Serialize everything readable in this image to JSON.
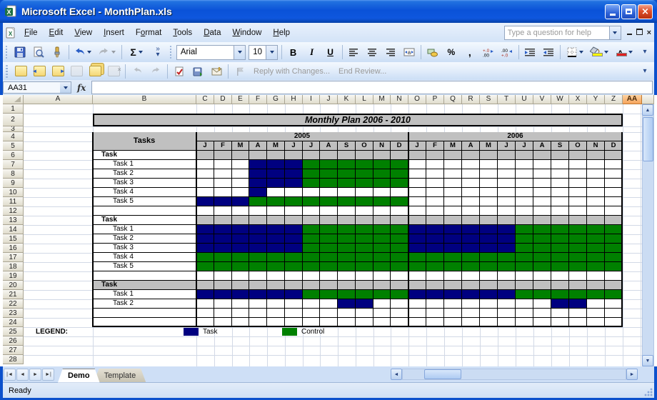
{
  "window": {
    "title": "Microsoft Excel - MonthPlan.xls"
  },
  "menu_bar": {
    "items": [
      {
        "label": "File",
        "accel": "F"
      },
      {
        "label": "Edit",
        "accel": "E"
      },
      {
        "label": "View",
        "accel": "V"
      },
      {
        "label": "Insert",
        "accel": "I"
      },
      {
        "label": "Format",
        "accel": "o"
      },
      {
        "label": "Tools",
        "accel": "T"
      },
      {
        "label": "Data",
        "accel": "D"
      },
      {
        "label": "Window",
        "accel": "W"
      },
      {
        "label": "Help",
        "accel": "H"
      }
    ],
    "help_placeholder": "Type a question for help"
  },
  "standard_toolbar": {
    "autosum_label": "Σ",
    "overflow_chevron": "»"
  },
  "formatting_toolbar": {
    "font_name": "Arial",
    "font_size": "10",
    "bold_label": "B",
    "italic_label": "I",
    "underline_label": "U",
    "percent_label": "%",
    "comma_label": ",",
    "font_color_label": "A"
  },
  "reviewing_toolbar": {
    "reply_with_changes": "Reply with Changes...",
    "end_review": "End Review..."
  },
  "formula_bar": {
    "name_box": "AA31",
    "fx_label": "fx",
    "formula_value": ""
  },
  "sheet": {
    "title": "Monthly Plan 2006 - 2010",
    "tasks_header": "Tasks",
    "columns": [
      "A",
      "B",
      "C",
      "D",
      "E",
      "F",
      "G",
      "H",
      "I",
      "J",
      "K",
      "L",
      "M",
      "N",
      "O",
      "P",
      "Q",
      "R",
      "S",
      "T",
      "U",
      "V",
      "W",
      "X",
      "Y",
      "Z",
      "AA"
    ],
    "selected_column": "AA",
    "visible_rows": 28,
    "years": [
      {
        "label": "2005",
        "months": [
          "J",
          "F",
          "M",
          "A",
          "M",
          "J",
          "J",
          "A",
          "S",
          "O",
          "N",
          "D"
        ]
      },
      {
        "label": "2006",
        "months": [
          "J",
          "F",
          "M",
          "A",
          "M",
          "J",
          "J",
          "A",
          "S",
          "O",
          "N",
          "D"
        ]
      }
    ],
    "rows": [
      {
        "row": 6,
        "type": "section",
        "label": "Task",
        "b_gray": false
      },
      {
        "row": 7,
        "type": "task",
        "label": "Task 1",
        "cells": "WWWBBBGGGGGGWWWWWWWWWWWW"
      },
      {
        "row": 8,
        "type": "task",
        "label": "Task 2",
        "cells": "WWWBBBGGGGGGWWWWWWWWWWWW"
      },
      {
        "row": 9,
        "type": "task",
        "label": "Task 3",
        "cells": "WWWBBBGGGGGGWWWWWWWWWWWW"
      },
      {
        "row": 10,
        "type": "task",
        "label": "Task 4",
        "cells": "WWWBWWWWWWWWWWWWWWWWWWWW"
      },
      {
        "row": 11,
        "type": "task",
        "label": "Task 5",
        "cells": "BBBGGGGGGGGGWWWWWWWWWWWW"
      },
      {
        "row": 12,
        "type": "blank"
      },
      {
        "row": 13,
        "type": "section",
        "label": "Task",
        "b_gray": false
      },
      {
        "row": 14,
        "type": "task",
        "label": "Task 1",
        "cells": "BBBBBBGGGGGGBBBBBBGGGGGG"
      },
      {
        "row": 15,
        "type": "task",
        "label": "Task 2",
        "cells": "BBBBBBGGGGGGBBBBBBGGGGGG"
      },
      {
        "row": 16,
        "type": "task",
        "label": "Task 3",
        "cells": "BBBBBBGGGGGGBBBBBBGGGGGG"
      },
      {
        "row": 17,
        "type": "task",
        "label": "Task 4",
        "cells": "GGGGGGGGGGGGGGGGGGGGGGGG"
      },
      {
        "row": 18,
        "type": "task",
        "label": "Task 5",
        "cells": "GGGGGGGGGGGGGGGGGGGGGGGG"
      },
      {
        "row": 19,
        "type": "blank"
      },
      {
        "row": 20,
        "type": "section",
        "label": "Task",
        "b_gray": true
      },
      {
        "row": 21,
        "type": "task",
        "label": "Task 1",
        "cells": "BBBBBBGGGGGGBBBBBBGGGGGG"
      },
      {
        "row": 22,
        "type": "task",
        "label": "Task 2",
        "cells": "WWWWWWWWBBWWWWWWWWWWBBWW"
      },
      {
        "row": 23,
        "type": "blank"
      },
      {
        "row": 24,
        "type": "blank"
      }
    ],
    "legend": {
      "label": "LEGEND:",
      "items": [
        {
          "color_key": "task",
          "label": "Task"
        },
        {
          "color_key": "control",
          "label": "Control"
        }
      ]
    }
  },
  "colors": {
    "task": "#000080",
    "control": "#008000",
    "section_band": "#C0C0C0",
    "selected_header": "#F6A45C"
  },
  "sheet_tabs": {
    "tabs": [
      {
        "label": "Demo",
        "active": true
      },
      {
        "label": "Template",
        "active": false
      }
    ]
  },
  "status_bar": {
    "ready": "Ready"
  }
}
